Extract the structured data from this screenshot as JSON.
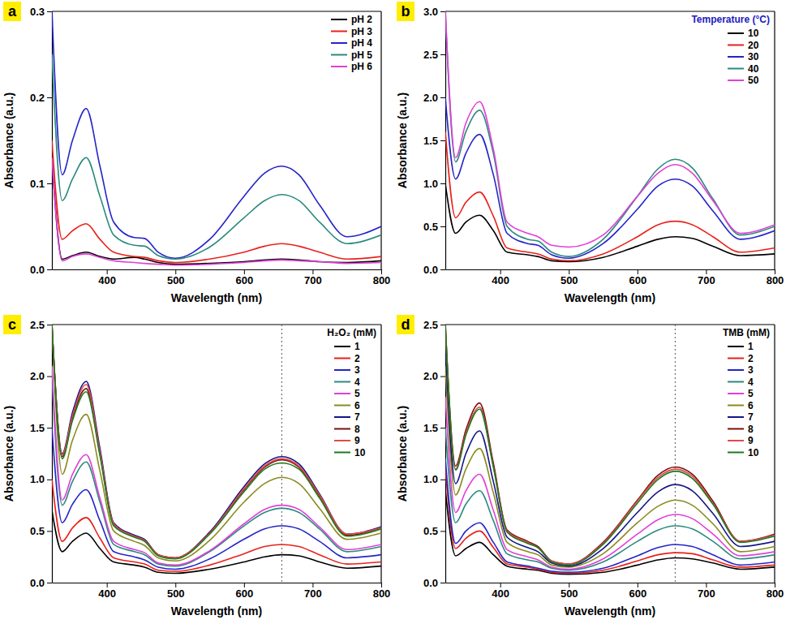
{
  "chart_data": [
    {
      "type": "line",
      "panel": "a",
      "x_label": "Wavelength (nm)",
      "y_label": "Absorbance (a.u.)",
      "xlim": [
        320,
        800
      ],
      "xticks": [
        400,
        500,
        600,
        700,
        800
      ],
      "ylim": [
        0,
        0.3
      ],
      "yticks": [
        {
          "value": 0,
          "label": "0.0"
        },
        0.1,
        0.2,
        0.3
      ],
      "legend": "upper right",
      "x": [
        320,
        335,
        350,
        370,
        390,
        410,
        440,
        455,
        475,
        500,
        550,
        600,
        630,
        655,
        680,
        710,
        750,
        800
      ],
      "series": [
        {
          "name": "pH 2",
          "color": "#000000",
          "values": [
            0.13,
            0.012,
            0.016,
            0.02,
            0.015,
            0.012,
            0.014,
            0.012,
            0.008,
            0.006,
            0.007,
            0.009,
            0.011,
            0.012,
            0.011,
            0.009,
            0.008,
            0.01
          ]
        },
        {
          "name": "pH 3",
          "color": "#e8211a",
          "values": [
            0.15,
            0.035,
            0.045,
            0.053,
            0.035,
            0.02,
            0.015,
            0.014,
            0.01,
            0.008,
            0.012,
            0.02,
            0.027,
            0.03,
            0.027,
            0.02,
            0.012,
            0.015
          ]
        },
        {
          "name": "pH 4",
          "color": "#2424c8",
          "values": [
            0.3,
            0.11,
            0.15,
            0.187,
            0.12,
            0.055,
            0.037,
            0.036,
            0.02,
            0.013,
            0.035,
            0.085,
            0.112,
            0.12,
            0.11,
            0.075,
            0.038,
            0.05
          ]
        },
        {
          "name": "pH 5",
          "color": "#2a8a7e",
          "values": [
            0.25,
            0.08,
            0.105,
            0.13,
            0.085,
            0.04,
            0.028,
            0.027,
            0.016,
            0.012,
            0.026,
            0.06,
            0.08,
            0.087,
            0.08,
            0.055,
            0.03,
            0.04
          ]
        },
        {
          "name": "pH 6",
          "color": "#e040d8",
          "values": [
            0.13,
            0.01,
            0.015,
            0.018,
            0.014,
            0.01,
            0.008,
            0.007,
            0.006,
            0.005,
            0.006,
            0.008,
            0.01,
            0.011,
            0.01,
            0.009,
            0.007,
            0.008
          ]
        }
      ]
    },
    {
      "type": "line",
      "panel": "b",
      "x_label": "Wavelength (nm)",
      "y_label": "Absorbance (a.u.)",
      "xlim": [
        320,
        800
      ],
      "xticks": [
        400,
        500,
        600,
        700,
        800
      ],
      "ylim": [
        0,
        3
      ],
      "yticks": [
        {
          "value": 0,
          "label": "0.0"
        },
        0.5,
        {
          "value": 1,
          "label": "1.0"
        },
        1.5,
        {
          "value": 2,
          "label": "2.0"
        },
        2.5,
        {
          "value": 3,
          "label": "3.0"
        }
      ],
      "legend": "upper right",
      "legend_title": "Temperature (°C)",
      "x": [
        320,
        335,
        350,
        370,
        390,
        410,
        440,
        455,
        475,
        500,
        550,
        600,
        630,
        655,
        680,
        710,
        750,
        800
      ],
      "series": [
        {
          "name": "10",
          "color": "#000000",
          "values": [
            1.0,
            0.42,
            0.55,
            0.63,
            0.45,
            0.2,
            0.17,
            0.15,
            0.1,
            0.09,
            0.14,
            0.27,
            0.35,
            0.38,
            0.36,
            0.27,
            0.16,
            0.18
          ]
        },
        {
          "name": "20",
          "color": "#e8211a",
          "values": [
            1.6,
            0.6,
            0.78,
            0.9,
            0.62,
            0.25,
            0.2,
            0.18,
            0.12,
            0.1,
            0.18,
            0.38,
            0.52,
            0.56,
            0.52,
            0.38,
            0.2,
            0.25
          ]
        },
        {
          "name": "30",
          "color": "#2424c8",
          "values": [
            2.0,
            1.05,
            1.35,
            1.57,
            1.1,
            0.42,
            0.3,
            0.28,
            0.17,
            0.13,
            0.3,
            0.7,
            0.97,
            1.05,
            0.97,
            0.68,
            0.35,
            0.45
          ]
        },
        {
          "name": "40",
          "color": "#2a8a7e",
          "values": [
            3.0,
            1.25,
            1.6,
            1.85,
            1.35,
            0.5,
            0.35,
            0.33,
            0.2,
            0.15,
            0.35,
            0.85,
            1.17,
            1.28,
            1.18,
            0.82,
            0.4,
            0.5
          ]
        },
        {
          "name": "50",
          "color": "#e040d8",
          "values": [
            3.0,
            1.3,
            1.7,
            1.95,
            1.4,
            0.55,
            0.42,
            0.38,
            0.28,
            0.26,
            0.4,
            0.85,
            1.12,
            1.22,
            1.12,
            0.8,
            0.42,
            0.52
          ]
        }
      ]
    },
    {
      "type": "line",
      "panel": "c",
      "x_label": "Wavelength (nm)",
      "y_label": "Absorbance (a.u.)",
      "xlim": [
        320,
        800
      ],
      "xticks": [
        400,
        500,
        600,
        700,
        800
      ],
      "ylim": [
        0,
        2.5
      ],
      "yticks": [
        {
          "value": 0,
          "label": "0.0"
        },
        0.5,
        {
          "value": 1,
          "label": "1.0"
        },
        1.5,
        {
          "value": 2,
          "label": "2.0"
        },
        2.5
      ],
      "legend": "upper right",
      "legend_title": "H₂O₂ (mM)",
      "reference_x": 655,
      "x": [
        320,
        335,
        350,
        370,
        390,
        410,
        440,
        455,
        475,
        500,
        550,
        600,
        630,
        655,
        680,
        710,
        750,
        800
      ],
      "series": [
        {
          "name": "1",
          "color": "#000000",
          "values": [
            0.7,
            0.3,
            0.4,
            0.48,
            0.33,
            0.2,
            0.17,
            0.15,
            0.1,
            0.09,
            0.13,
            0.2,
            0.25,
            0.27,
            0.26,
            0.2,
            0.14,
            0.16
          ]
        },
        {
          "name": "2",
          "color": "#e8211a",
          "values": [
            1.0,
            0.4,
            0.53,
            0.63,
            0.43,
            0.24,
            0.2,
            0.18,
            0.12,
            0.11,
            0.17,
            0.28,
            0.35,
            0.37,
            0.35,
            0.27,
            0.18,
            0.2
          ]
        },
        {
          "name": "3",
          "color": "#2424c8",
          "values": [
            1.5,
            0.58,
            0.76,
            0.9,
            0.6,
            0.3,
            0.25,
            0.22,
            0.15,
            0.13,
            0.23,
            0.42,
            0.52,
            0.55,
            0.52,
            0.4,
            0.24,
            0.27
          ]
        },
        {
          "name": "4",
          "color": "#2a8a7e",
          "values": [
            2.0,
            0.75,
            0.98,
            1.17,
            0.78,
            0.37,
            0.3,
            0.27,
            0.18,
            0.16,
            0.3,
            0.55,
            0.68,
            0.72,
            0.68,
            0.52,
            0.3,
            0.35
          ]
        },
        {
          "name": "5",
          "color": "#e040d8",
          "values": [
            2.1,
            0.8,
            1.05,
            1.24,
            0.82,
            0.4,
            0.32,
            0.29,
            0.19,
            0.17,
            0.31,
            0.57,
            0.71,
            0.75,
            0.71,
            0.54,
            0.32,
            0.37
          ]
        },
        {
          "name": "6",
          "color": "#8a8a1e",
          "values": [
            2.5,
            1.05,
            1.38,
            1.63,
            1.08,
            0.5,
            0.4,
            0.36,
            0.24,
            0.21,
            0.41,
            0.78,
            0.96,
            1.02,
            0.96,
            0.72,
            0.42,
            0.48
          ]
        },
        {
          "name": "7",
          "color": "#14148a",
          "values": [
            2.5,
            1.25,
            1.65,
            1.95,
            1.3,
            0.58,
            0.46,
            0.42,
            0.27,
            0.24,
            0.49,
            0.93,
            1.15,
            1.22,
            1.15,
            0.86,
            0.47,
            0.54
          ]
        },
        {
          "name": "8",
          "color": "#7a1010",
          "values": [
            2.5,
            1.22,
            1.6,
            1.88,
            1.25,
            0.56,
            0.45,
            0.41,
            0.27,
            0.24,
            0.48,
            0.9,
            1.12,
            1.19,
            1.12,
            0.84,
            0.46,
            0.53
          ]
        },
        {
          "name": "9",
          "color": "#e04a4a",
          "values": [
            2.5,
            1.24,
            1.62,
            1.92,
            1.27,
            0.57,
            0.45,
            0.41,
            0.27,
            0.24,
            0.48,
            0.91,
            1.13,
            1.2,
            1.13,
            0.85,
            0.47,
            0.53
          ]
        },
        {
          "name": "10",
          "color": "#1e7a1e",
          "values": [
            2.5,
            1.2,
            1.57,
            1.85,
            1.23,
            0.55,
            0.44,
            0.4,
            0.26,
            0.23,
            0.47,
            0.88,
            1.1,
            1.16,
            1.1,
            0.82,
            0.45,
            0.52
          ]
        }
      ]
    },
    {
      "type": "line",
      "panel": "d",
      "x_label": "Wavelength (nm)",
      "y_label": "Absorbance (a.u.)",
      "xlim": [
        320,
        800
      ],
      "xticks": [
        400,
        500,
        600,
        700,
        800
      ],
      "ylim": [
        0,
        2.5
      ],
      "yticks": [
        {
          "value": 0,
          "label": "0.0"
        },
        0.5,
        {
          "value": 1,
          "label": "1.0"
        },
        1.5,
        {
          "value": 2,
          "label": "2.0"
        },
        2.5
      ],
      "legend": "upper right",
      "legend_title": "TMB (mM)",
      "reference_x": 655,
      "x": [
        320,
        335,
        350,
        370,
        390,
        410,
        440,
        455,
        475,
        500,
        550,
        600,
        630,
        655,
        680,
        710,
        750,
        800
      ],
      "series": [
        {
          "name": "1",
          "color": "#000000",
          "values": [
            0.9,
            0.26,
            0.33,
            0.39,
            0.27,
            0.16,
            0.13,
            0.12,
            0.09,
            0.08,
            0.1,
            0.17,
            0.22,
            0.24,
            0.23,
            0.19,
            0.13,
            0.15
          ]
        },
        {
          "name": "2",
          "color": "#e8211a",
          "values": [
            1.1,
            0.33,
            0.43,
            0.5,
            0.34,
            0.18,
            0.15,
            0.13,
            0.1,
            0.09,
            0.12,
            0.21,
            0.27,
            0.29,
            0.28,
            0.22,
            0.15,
            0.17
          ]
        },
        {
          "name": "3",
          "color": "#2424c8",
          "values": [
            1.2,
            0.38,
            0.5,
            0.58,
            0.39,
            0.2,
            0.16,
            0.14,
            0.11,
            0.1,
            0.14,
            0.26,
            0.34,
            0.37,
            0.35,
            0.27,
            0.17,
            0.2
          ]
        },
        {
          "name": "4",
          "color": "#2a8a7e",
          "values": [
            1.5,
            0.58,
            0.76,
            0.89,
            0.6,
            0.28,
            0.22,
            0.2,
            0.14,
            0.12,
            0.2,
            0.4,
            0.51,
            0.55,
            0.52,
            0.4,
            0.23,
            0.27
          ]
        },
        {
          "name": "5",
          "color": "#e040d8",
          "values": [
            1.8,
            0.68,
            0.89,
            1.05,
            0.7,
            0.32,
            0.25,
            0.22,
            0.15,
            0.13,
            0.23,
            0.47,
            0.61,
            0.66,
            0.62,
            0.47,
            0.26,
            0.3
          ]
        },
        {
          "name": "6",
          "color": "#8a8a1e",
          "values": [
            2.1,
            0.85,
            1.1,
            1.3,
            0.87,
            0.39,
            0.3,
            0.27,
            0.17,
            0.15,
            0.28,
            0.58,
            0.74,
            0.8,
            0.75,
            0.57,
            0.3,
            0.35
          ]
        },
        {
          "name": "7",
          "color": "#14148a",
          "values": [
            2.3,
            0.96,
            1.25,
            1.47,
            0.98,
            0.44,
            0.34,
            0.3,
            0.19,
            0.16,
            0.33,
            0.68,
            0.88,
            0.95,
            0.89,
            0.67,
            0.35,
            0.4
          ]
        },
        {
          "name": "8",
          "color": "#7a1010",
          "values": [
            2.5,
            1.13,
            1.48,
            1.74,
            1.16,
            0.51,
            0.4,
            0.35,
            0.21,
            0.18,
            0.39,
            0.8,
            1.04,
            1.12,
            1.05,
            0.79,
            0.4,
            0.47
          ]
        },
        {
          "name": "9",
          "color": "#e04a4a",
          "values": [
            2.5,
            1.1,
            1.45,
            1.7,
            1.13,
            0.5,
            0.39,
            0.34,
            0.21,
            0.18,
            0.38,
            0.79,
            1.02,
            1.1,
            1.03,
            0.77,
            0.4,
            0.46
          ]
        },
        {
          "name": "10",
          "color": "#1e7a1e",
          "values": [
            2.5,
            1.09,
            1.43,
            1.68,
            1.12,
            0.49,
            0.38,
            0.34,
            0.2,
            0.17,
            0.37,
            0.77,
            1.0,
            1.08,
            1.01,
            0.76,
            0.39,
            0.45
          ]
        }
      ]
    }
  ]
}
